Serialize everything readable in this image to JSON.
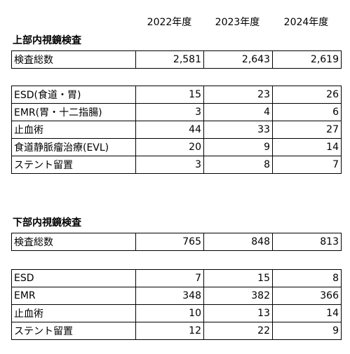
{
  "header": {
    "years": [
      "2022年度",
      "2023年度",
      "2024年度"
    ]
  },
  "sections": [
    {
      "title": "上部内視鏡検査",
      "total": {
        "label": "検査総数",
        "values": [
          "2,581",
          "2,643",
          "2,619"
        ]
      },
      "procedures": [
        {
          "label": "ESD(食道・胃)",
          "values": [
            "15",
            "23",
            "26"
          ]
        },
        {
          "label": "EMR(胃・十二指腸)",
          "values": [
            "3",
            "4",
            "6"
          ]
        },
        {
          "label": "止血術",
          "values": [
            "44",
            "33",
            "27"
          ]
        },
        {
          "label": "食道静脈瘤治療(EVL)",
          "values": [
            "20",
            "9",
            "14"
          ]
        },
        {
          "label": "ステント留置",
          "values": [
            "3",
            "8",
            "7"
          ]
        }
      ]
    },
    {
      "title": "下部内視鏡検査",
      "total": {
        "label": "検査総数",
        "values": [
          "765",
          "848",
          "813"
        ]
      },
      "procedures": [
        {
          "label": "ESD",
          "values": [
            "7",
            "15",
            "8"
          ]
        },
        {
          "label": "EMR",
          "values": [
            "348",
            "382",
            "366"
          ]
        },
        {
          "label": "止血術",
          "values": [
            "10",
            "13",
            "14"
          ]
        },
        {
          "label": "ステント留置",
          "values": [
            "12",
            "22",
            "9"
          ]
        }
      ]
    }
  ]
}
